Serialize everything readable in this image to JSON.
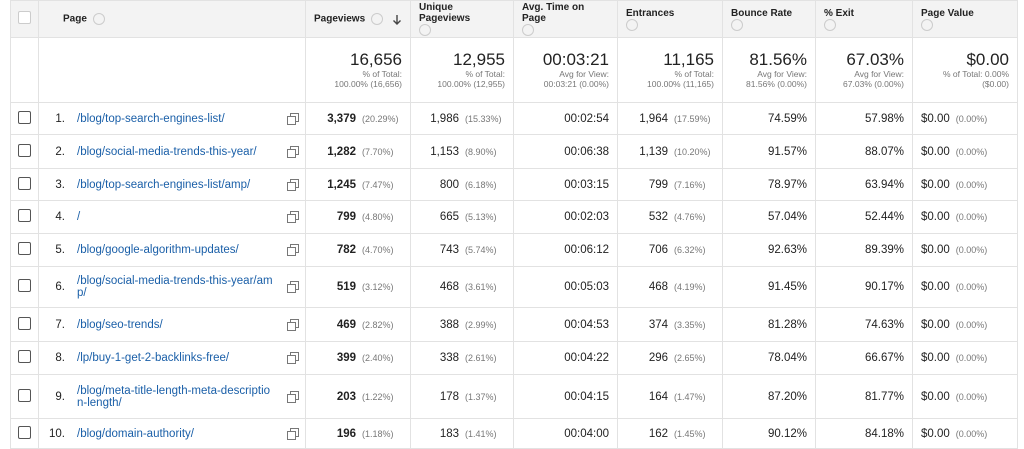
{
  "header": [
    "Page",
    "Pageviews",
    "Unique Pageviews",
    "Avg. Time on Page",
    "Entrances",
    "Bounce Rate",
    "% Exit",
    "Page Value"
  ],
  "totals": {
    "pageviews": [
      "16,656",
      "% of Total:",
      "100.00% (16,656)"
    ],
    "unique_pageviews": [
      "12,955",
      "% of Total:",
      "100.00% (12,955)"
    ],
    "avg_time": [
      "00:03:21",
      "Avg for View:",
      "00:03:21 (0.00%)"
    ],
    "entrances": [
      "11,165",
      "% of Total:",
      "100.00% (11,165)"
    ],
    "bounce_rate": [
      "81.56%",
      "Avg for View:",
      "81.56% (0.00%)"
    ],
    "exit": [
      "67.03%",
      "Avg for View:",
      "67.03% (0.00%)"
    ],
    "page_value": [
      "$0.00",
      "% of Total: 0.00%",
      "($0.00)"
    ]
  },
  "rows": [
    {
      "index": "1.",
      "page": "/blog/top-search-engines-list/",
      "pageviews": "3,379",
      "pageviews_pct": "(20.29%)",
      "unique_pageviews": "1,986",
      "unique_pageviews_pct": "(15.33%)",
      "avg_time": "00:02:54",
      "entrances": "1,964",
      "entrances_pct": "(17.59%)",
      "bounce_rate": "74.59%",
      "exit": "57.98%",
      "page_value": "$0.00",
      "page_value_pct": "(0.00%)"
    },
    {
      "index": "2.",
      "page": "/blog/social-media-trends-this-year/",
      "pageviews": "1,282",
      "pageviews_pct": "(7.70%)",
      "unique_pageviews": "1,153",
      "unique_pageviews_pct": "(8.90%)",
      "avg_time": "00:06:38",
      "entrances": "1,139",
      "entrances_pct": "(10.20%)",
      "bounce_rate": "91.57%",
      "exit": "88.07%",
      "page_value": "$0.00",
      "page_value_pct": "(0.00%)"
    },
    {
      "index": "3.",
      "page": "/blog/top-search-engines-list/amp/",
      "pageviews": "1,245",
      "pageviews_pct": "(7.47%)",
      "unique_pageviews": "800",
      "unique_pageviews_pct": "(6.18%)",
      "avg_time": "00:03:15",
      "entrances": "799",
      "entrances_pct": "(7.16%)",
      "bounce_rate": "78.97%",
      "exit": "63.94%",
      "page_value": "$0.00",
      "page_value_pct": "(0.00%)"
    },
    {
      "index": "4.",
      "page": "/",
      "pageviews": "799",
      "pageviews_pct": "(4.80%)",
      "unique_pageviews": "665",
      "unique_pageviews_pct": "(5.13%)",
      "avg_time": "00:02:03",
      "entrances": "532",
      "entrances_pct": "(4.76%)",
      "bounce_rate": "57.04%",
      "exit": "52.44%",
      "page_value": "$0.00",
      "page_value_pct": "(0.00%)"
    },
    {
      "index": "5.",
      "page": "/blog/google-algorithm-updates/",
      "pageviews": "782",
      "pageviews_pct": "(4.70%)",
      "unique_pageviews": "743",
      "unique_pageviews_pct": "(5.74%)",
      "avg_time": "00:06:12",
      "entrances": "706",
      "entrances_pct": "(6.32%)",
      "bounce_rate": "92.63%",
      "exit": "89.39%",
      "page_value": "$0.00",
      "page_value_pct": "(0.00%)"
    },
    {
      "index": "6.",
      "page": "/blog/social-media-trends-this-year/amp/",
      "pageviews": "519",
      "pageviews_pct": "(3.12%)",
      "unique_pageviews": "468",
      "unique_pageviews_pct": "(3.61%)",
      "avg_time": "00:05:03",
      "entrances": "468",
      "entrances_pct": "(4.19%)",
      "bounce_rate": "91.45%",
      "exit": "90.17%",
      "page_value": "$0.00",
      "page_value_pct": "(0.00%)"
    },
    {
      "index": "7.",
      "page": "/blog/seo-trends/",
      "pageviews": "469",
      "pageviews_pct": "(2.82%)",
      "unique_pageviews": "388",
      "unique_pageviews_pct": "(2.99%)",
      "avg_time": "00:04:53",
      "entrances": "374",
      "entrances_pct": "(3.35%)",
      "bounce_rate": "81.28%",
      "exit": "74.63%",
      "page_value": "$0.00",
      "page_value_pct": "(0.00%)"
    },
    {
      "index": "8.",
      "page": "/lp/buy-1-get-2-backlinks-free/",
      "pageviews": "399",
      "pageviews_pct": "(2.40%)",
      "unique_pageviews": "338",
      "unique_pageviews_pct": "(2.61%)",
      "avg_time": "00:04:22",
      "entrances": "296",
      "entrances_pct": "(2.65%)",
      "bounce_rate": "78.04%",
      "exit": "66.67%",
      "page_value": "$0.00",
      "page_value_pct": "(0.00%)"
    },
    {
      "index": "9.",
      "page": "/blog/meta-title-length-meta-description-length/",
      "pageviews": "203",
      "pageviews_pct": "(1.22%)",
      "unique_pageviews": "178",
      "unique_pageviews_pct": "(1.37%)",
      "avg_time": "00:04:15",
      "entrances": "164",
      "entrances_pct": "(1.47%)",
      "bounce_rate": "87.20%",
      "exit": "81.77%",
      "page_value": "$0.00",
      "page_value_pct": "(0.00%)"
    },
    {
      "index": "10.",
      "page": "/blog/domain-authority/",
      "pageviews": "196",
      "pageviews_pct": "(1.18%)",
      "unique_pageviews": "183",
      "unique_pageviews_pct": "(1.41%)",
      "avg_time": "00:04:00",
      "entrances": "162",
      "entrances_pct": "(1.45%)",
      "bounce_rate": "90.12%",
      "exit": "84.18%",
      "page_value": "$0.00",
      "page_value_pct": "(0.00%)"
    }
  ]
}
